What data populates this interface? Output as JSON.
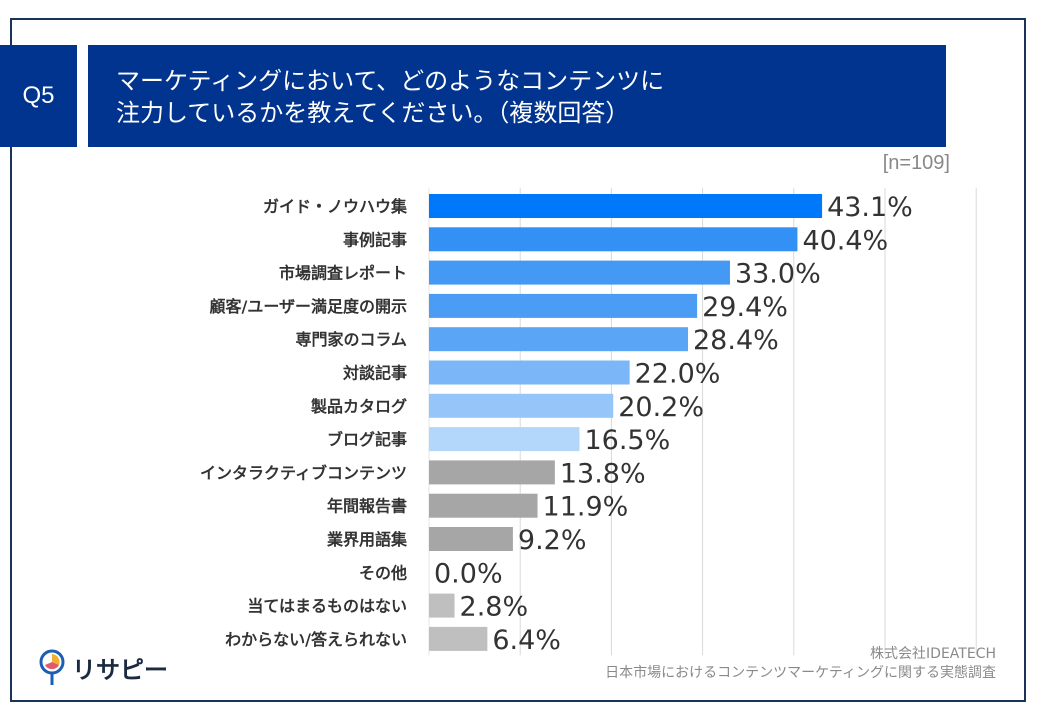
{
  "header": {
    "question_no": "Q5",
    "title_line1": "マーケティングにおいて、どのようなコンテンツに",
    "title_line2": "注力しているかを教えてください。（複数回答）"
  },
  "sample_size": "[n=109]",
  "source": {
    "company": "株式会社IDEATECH",
    "survey": "日本市場におけるコンテンツマーケティングに関する実態調査"
  },
  "logo": {
    "text": "リサピー"
  },
  "chart_data": {
    "type": "bar",
    "orientation": "horizontal",
    "categories": [
      "ガイド・ノウハウ集",
      "事例記事",
      "市場調査レポート",
      "顧客/ユーザー満足度の開示",
      "専門家のコラム",
      "対談記事",
      "製品カタログ",
      "ブログ記事",
      "インタラクティブコンテンツ",
      "年間報告書",
      "業界用語集",
      "その他",
      "当てはまるものはない",
      "わからない/答えられない"
    ],
    "values": [
      43.1,
      40.4,
      33.0,
      29.4,
      28.4,
      22.0,
      20.2,
      16.5,
      13.8,
      11.9,
      9.2,
      0.0,
      2.8,
      6.4
    ],
    "labels": [
      "43.1%",
      "40.4%",
      "33.0%",
      "29.4%",
      "28.4%",
      "22.0%",
      "20.2%",
      "16.5%",
      "13.8%",
      "11.9%",
      "9.2%",
      "0.0%",
      "2.8%",
      "6.4%"
    ],
    "colors": [
      "#0078fa",
      "#3390f5",
      "#4499f5",
      "#4a9cf5",
      "#5aa5f6",
      "#7ab6f8",
      "#96c6f9",
      "#b3d6fb",
      "#a6a6a6",
      "#a6a6a6",
      "#a6a6a6",
      "#bfbfbf",
      "#bfbfbf",
      "#bfbfbf"
    ],
    "xlim": [
      0,
      60
    ],
    "grid": true,
    "unit": "%"
  }
}
